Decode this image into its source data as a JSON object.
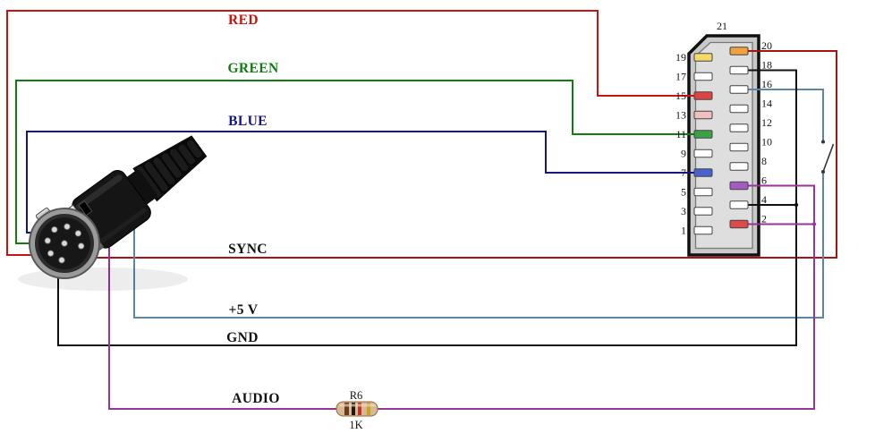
{
  "wires": {
    "red": {
      "label": "RED",
      "color": "#cc1111",
      "label_color": "#cc1111"
    },
    "green": {
      "label": "GREEN",
      "color": "#0f7d0f",
      "label_color": "#0f7d0f"
    },
    "blue": {
      "label": "BLUE",
      "color": "#15157f",
      "label_color": "#15157f"
    },
    "sync": {
      "label": "SYNC",
      "color": "#aa1111",
      "label_color": "#111111"
    },
    "plus5v": {
      "label": "+5 V",
      "color": "#5b87a5",
      "label_color": "#111111"
    },
    "gnd": {
      "label": "GND",
      "color": "#111111",
      "label_color": "#111111"
    },
    "audio": {
      "label": "AUDIO",
      "color": "#993399",
      "label_color": "#111111"
    }
  },
  "resistor": {
    "designator": "R6",
    "value": "1K"
  },
  "scart": {
    "shell_pin_label": "21",
    "left_pins": [
      {
        "number": "19",
        "color": "#f6d96b"
      },
      {
        "number": "17",
        "color": "#ffffff"
      },
      {
        "number": "15",
        "color": "#e04343"
      },
      {
        "number": "13",
        "color": "#f0c0c0"
      },
      {
        "number": "11",
        "color": "#3aa245"
      },
      {
        "number": "9",
        "color": "#ffffff"
      },
      {
        "number": "7",
        "color": "#4663d0"
      },
      {
        "number": "5",
        "color": "#ffffff"
      },
      {
        "number": "3",
        "color": "#ffffff"
      },
      {
        "number": "1",
        "color": "#ffffff"
      }
    ],
    "right_pins": [
      {
        "number": "20",
        "color": "#f0a23c"
      },
      {
        "number": "18",
        "color": "#ffffff"
      },
      {
        "number": "16",
        "color": "#ffffff"
      },
      {
        "number": "14",
        "color": "#ffffff"
      },
      {
        "number": "12",
        "color": "#ffffff"
      },
      {
        "number": "10",
        "color": "#ffffff"
      },
      {
        "number": "8",
        "color": "#ffffff"
      },
      {
        "number": "6",
        "color": "#a55bc0"
      },
      {
        "number": "4",
        "color": "#ffffff"
      },
      {
        "number": "2",
        "color": "#dd4a4a"
      }
    ]
  }
}
